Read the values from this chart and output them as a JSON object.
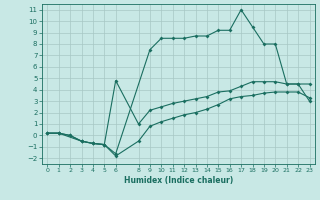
{
  "xlabel": "Humidex (Indice chaleur)",
  "background_color": "#c8e8e5",
  "grid_color": "#a8c8c5",
  "line_color": "#1a6e60",
  "x_ticks": [
    0,
    1,
    2,
    3,
    4,
    5,
    6,
    8,
    9,
    10,
    11,
    12,
    13,
    14,
    15,
    16,
    17,
    18,
    19,
    20,
    21,
    22,
    23
  ],
  "y_ticks": [
    -2,
    -1,
    0,
    1,
    2,
    3,
    4,
    5,
    6,
    7,
    8,
    9,
    10,
    11
  ],
  "xlim": [
    -0.5,
    23.5
  ],
  "ylim": [
    -2.5,
    11.5
  ],
  "series": [
    {
      "x": [
        0,
        1,
        2,
        3,
        4,
        5,
        6,
        9,
        10,
        11,
        12,
        13,
        14,
        15,
        16,
        17,
        18,
        19,
        20,
        21,
        22,
        23
      ],
      "y": [
        0.2,
        0.2,
        0.0,
        -0.5,
        -0.7,
        -0.8,
        -1.6,
        7.5,
        8.5,
        8.5,
        8.5,
        8.7,
        8.7,
        9.2,
        9.2,
        11.0,
        9.5,
        8.0,
        8.0,
        4.5,
        4.5,
        4.5
      ]
    },
    {
      "x": [
        0,
        1,
        3,
        4,
        5,
        6,
        8,
        9,
        10,
        11,
        12,
        13,
        14,
        15,
        16,
        17,
        18,
        19,
        20,
        21,
        22,
        23
      ],
      "y": [
        0.2,
        0.2,
        -0.5,
        -0.7,
        -0.8,
        4.8,
        1.0,
        2.2,
        2.5,
        2.8,
        3.0,
        3.2,
        3.4,
        3.8,
        3.9,
        4.3,
        4.7,
        4.7,
        4.7,
        4.5,
        4.5,
        3.0
      ]
    },
    {
      "x": [
        0,
        1,
        2,
        3,
        4,
        5,
        6,
        8,
        9,
        10,
        11,
        12,
        13,
        14,
        15,
        16,
        17,
        18,
        19,
        20,
        21,
        22,
        23
      ],
      "y": [
        0.2,
        0.2,
        0.0,
        -0.5,
        -0.7,
        -0.8,
        -1.8,
        -0.5,
        0.8,
        1.2,
        1.5,
        1.8,
        2.0,
        2.3,
        2.7,
        3.2,
        3.4,
        3.5,
        3.7,
        3.8,
        3.8,
        3.8,
        3.3
      ]
    }
  ]
}
